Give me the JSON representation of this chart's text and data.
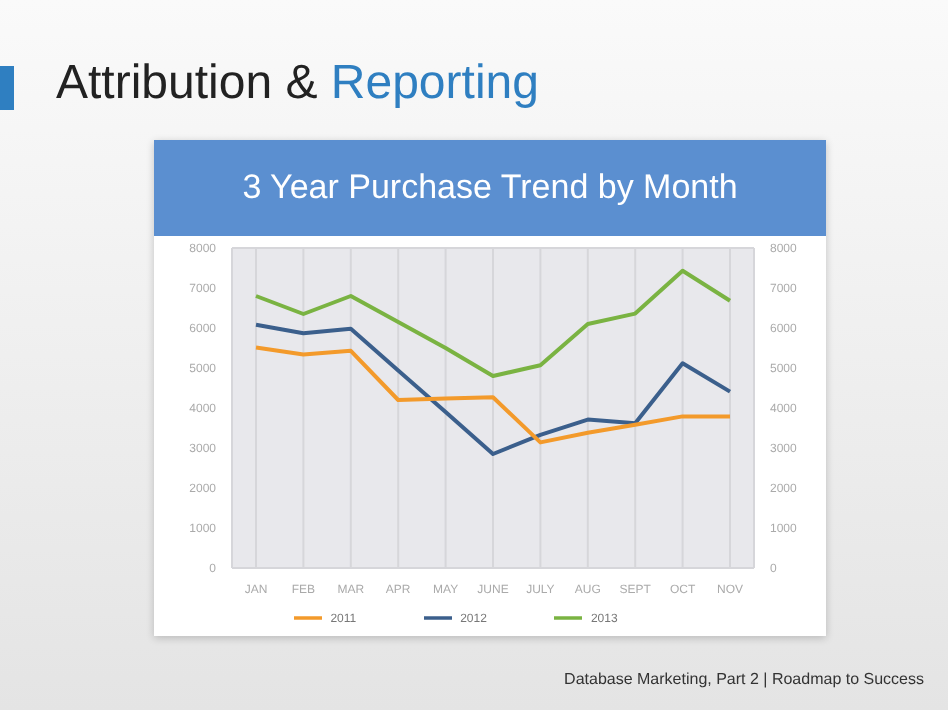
{
  "chart_data": {
    "type": "line",
    "title": "3 Year Purchase Trend by Month",
    "annotations": [
      "Attribution & Reporting",
      "Database Marketing, Part 2 | Roadmap to Success"
    ],
    "categories": [
      "JAN",
      "FEB",
      "MAR",
      "APR",
      "MAY",
      "JUNE",
      "JULY",
      "AUG",
      "SEPT",
      "OCT",
      "NOV"
    ],
    "series": [
      {
        "name": "2013",
        "color": "#7ab342",
        "values": [
          6800,
          6350,
          6800,
          6150,
          5500,
          4800,
          5070,
          6100,
          6360,
          7430,
          6680
        ]
      },
      {
        "name": "2012",
        "color": "#3b5f8c",
        "values": [
          6080,
          5870,
          5980,
          4940,
          3900,
          2850,
          3330,
          3710,
          3620,
          5120,
          4410
        ]
      },
      {
        "name": "2011",
        "color": "#f39a2b",
        "values": [
          5510,
          5340,
          5430,
          4200,
          4240,
          4270,
          3140,
          3380,
          3580,
          3790,
          3790
        ]
      }
    ],
    "ylim": [
      0,
      8000
    ],
    "yticks": [
      0,
      1000,
      2000,
      3000,
      4000,
      5000,
      6000,
      7000,
      8000
    ],
    "y2lim": [
      0,
      8000
    ],
    "y2ticks": [
      0,
      1000,
      2000,
      3000,
      4000,
      5000,
      6000,
      7000,
      8000
    ],
    "grid": true,
    "legend": "bottom",
    "marker": "none",
    "line_style": "solid"
  }
}
